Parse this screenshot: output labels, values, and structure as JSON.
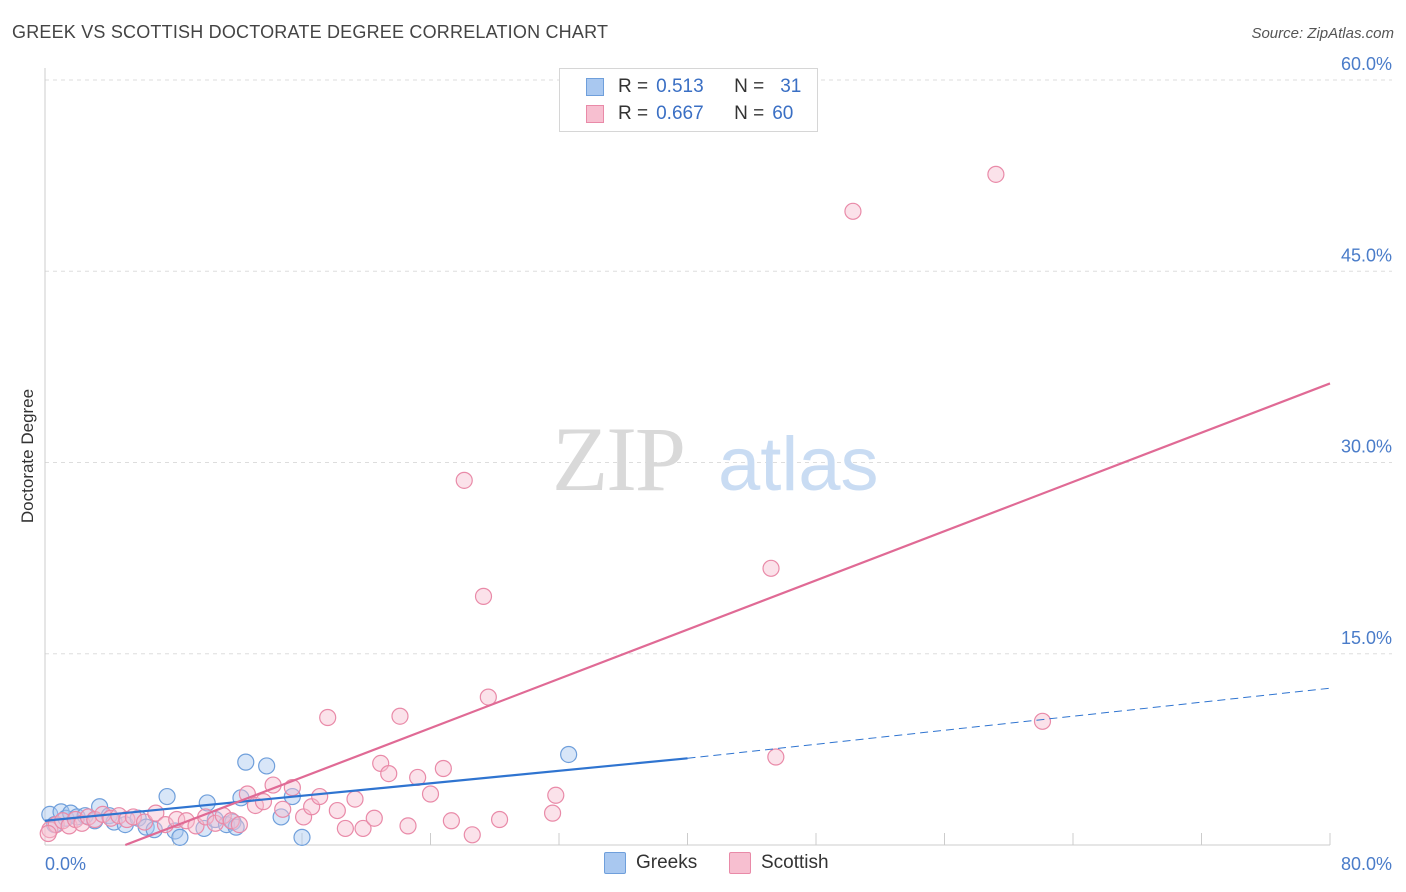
{
  "title": "GREEK VS SCOTTISH DOCTORATE DEGREE CORRELATION CHART",
  "source": "Source: ZipAtlas.com",
  "watermark": {
    "zip": "ZIP",
    "atlas": "atlas"
  },
  "legend": {
    "rows": [
      {
        "r_label": "R =",
        "r_value": "0.513",
        "n_label": "N =",
        "n_value": "31",
        "color": "#a9c8f0",
        "border": "#6f9fdb"
      },
      {
        "r_label": "R =",
        "r_value": "0.667",
        "n_label": "N =",
        "n_value": "60",
        "color": "#f7bfd0",
        "border": "#e98aa8"
      }
    ]
  },
  "bottom_legend": [
    {
      "label": "Greeks",
      "color": "#a9c8f0",
      "border": "#6f9fdb"
    },
    {
      "label": "Scottish",
      "color": "#f7bfd0",
      "border": "#e98aa8"
    }
  ],
  "chart_data": {
    "type": "scatter",
    "title": "GREEK VS SCOTTISH DOCTORATE DEGREE CORRELATION CHART",
    "xlabel": "",
    "ylabel": "Doctorate Degree",
    "xlim": [
      0,
      80
    ],
    "ylim": [
      0,
      60
    ],
    "x_ticks": [
      0,
      8,
      16,
      24,
      32,
      40,
      48,
      56,
      64,
      72,
      80
    ],
    "x_tick_labels": [
      {
        "value": 0,
        "label": "0.0%"
      },
      {
        "value": 80,
        "label": "80.0%"
      }
    ],
    "y_tick_labels": [
      {
        "value": 15,
        "label": "15.0%"
      },
      {
        "value": 30,
        "label": "30.0%"
      },
      {
        "value": 45,
        "label": "45.0%"
      },
      {
        "value": 60,
        "label": "60.0%"
      }
    ],
    "grid": true,
    "series": [
      {
        "name": "Greeks",
        "color": "#a9c8f0",
        "stroke": "#6f9fdb",
        "line_color": "#2f74d0",
        "trend": {
          "x0": 0,
          "y0": 1.9,
          "x1": 40,
          "y1": 6.8,
          "dash_x1": 80,
          "dash_y1": 12.3
        },
        "points": [
          [
            0.3,
            2.4
          ],
          [
            0.6,
            1.6
          ],
          [
            1.0,
            2.6
          ],
          [
            1.3,
            2.1
          ],
          [
            1.6,
            2.5
          ],
          [
            2.0,
            2.2
          ],
          [
            2.5,
            2.3
          ],
          [
            3.1,
            1.9
          ],
          [
            3.4,
            3.0
          ],
          [
            4.0,
            2.3
          ],
          [
            4.3,
            1.8
          ],
          [
            5.0,
            1.6
          ],
          [
            5.8,
            2.1
          ],
          [
            6.3,
            1.4
          ],
          [
            6.8,
            1.2
          ],
          [
            7.6,
            3.8
          ],
          [
            8.1,
            1.1
          ],
          [
            8.4,
            0.6
          ],
          [
            9.9,
            1.3
          ],
          [
            10.1,
            3.3
          ],
          [
            10.6,
            2.0
          ],
          [
            11.3,
            1.6
          ],
          [
            11.7,
            1.8
          ],
          [
            11.9,
            1.4
          ],
          [
            12.2,
            3.7
          ],
          [
            12.5,
            6.5
          ],
          [
            13.8,
            6.2
          ],
          [
            14.7,
            2.2
          ],
          [
            15.4,
            3.8
          ],
          [
            16.0,
            0.6
          ],
          [
            32.6,
            7.1
          ]
        ]
      },
      {
        "name": "Scottish",
        "color": "#f7bfd0",
        "stroke": "#e98aa8",
        "line_color": "#e06a95",
        "trend": {
          "x0": 5.0,
          "y0": 0.0,
          "x1": 80,
          "y1": 36.2
        },
        "points": [
          [
            0.3,
            1.2
          ],
          [
            0.7,
            1.6
          ],
          [
            1.1,
            1.9
          ],
          [
            1.5,
            1.5
          ],
          [
            1.9,
            2.0
          ],
          [
            2.3,
            1.7
          ],
          [
            2.7,
            2.2
          ],
          [
            3.1,
            2.0
          ],
          [
            3.6,
            2.4
          ],
          [
            4.1,
            2.1
          ],
          [
            4.6,
            2.3
          ],
          [
            5.1,
            2.0
          ],
          [
            5.5,
            2.2
          ],
          [
            6.2,
            1.8
          ],
          [
            6.9,
            2.5
          ],
          [
            7.5,
            1.6
          ],
          [
            8.2,
            2.0
          ],
          [
            8.8,
            1.9
          ],
          [
            9.4,
            1.5
          ],
          [
            10.0,
            2.2
          ],
          [
            10.6,
            1.7
          ],
          [
            11.1,
            2.3
          ],
          [
            11.6,
            1.9
          ],
          [
            12.1,
            1.6
          ],
          [
            12.6,
            4.0
          ],
          [
            13.1,
            3.1
          ],
          [
            13.6,
            3.4
          ],
          [
            14.2,
            4.7
          ],
          [
            14.8,
            2.8
          ],
          [
            15.4,
            4.5
          ],
          [
            16.1,
            2.2
          ],
          [
            16.6,
            3.0
          ],
          [
            17.1,
            3.8
          ],
          [
            17.6,
            10.0
          ],
          [
            18.2,
            2.7
          ],
          [
            18.7,
            1.3
          ],
          [
            19.3,
            3.6
          ],
          [
            19.8,
            1.3
          ],
          [
            20.5,
            2.1
          ],
          [
            20.9,
            6.4
          ],
          [
            21.4,
            5.6
          ],
          [
            22.1,
            10.1
          ],
          [
            22.6,
            1.5
          ],
          [
            23.2,
            5.3
          ],
          [
            24.0,
            4.0
          ],
          [
            24.8,
            6.0
          ],
          [
            25.3,
            1.9
          ],
          [
            26.1,
            28.6
          ],
          [
            26.6,
            0.8
          ],
          [
            27.3,
            19.5
          ],
          [
            27.6,
            11.6
          ],
          [
            28.3,
            2.0
          ],
          [
            31.6,
            2.5
          ],
          [
            31.8,
            3.9
          ],
          [
            45.2,
            21.7
          ],
          [
            45.5,
            6.9
          ],
          [
            50.3,
            49.7
          ],
          [
            59.2,
            52.6
          ],
          [
            62.1,
            9.7
          ],
          [
            0.2,
            0.9
          ]
        ]
      }
    ]
  }
}
